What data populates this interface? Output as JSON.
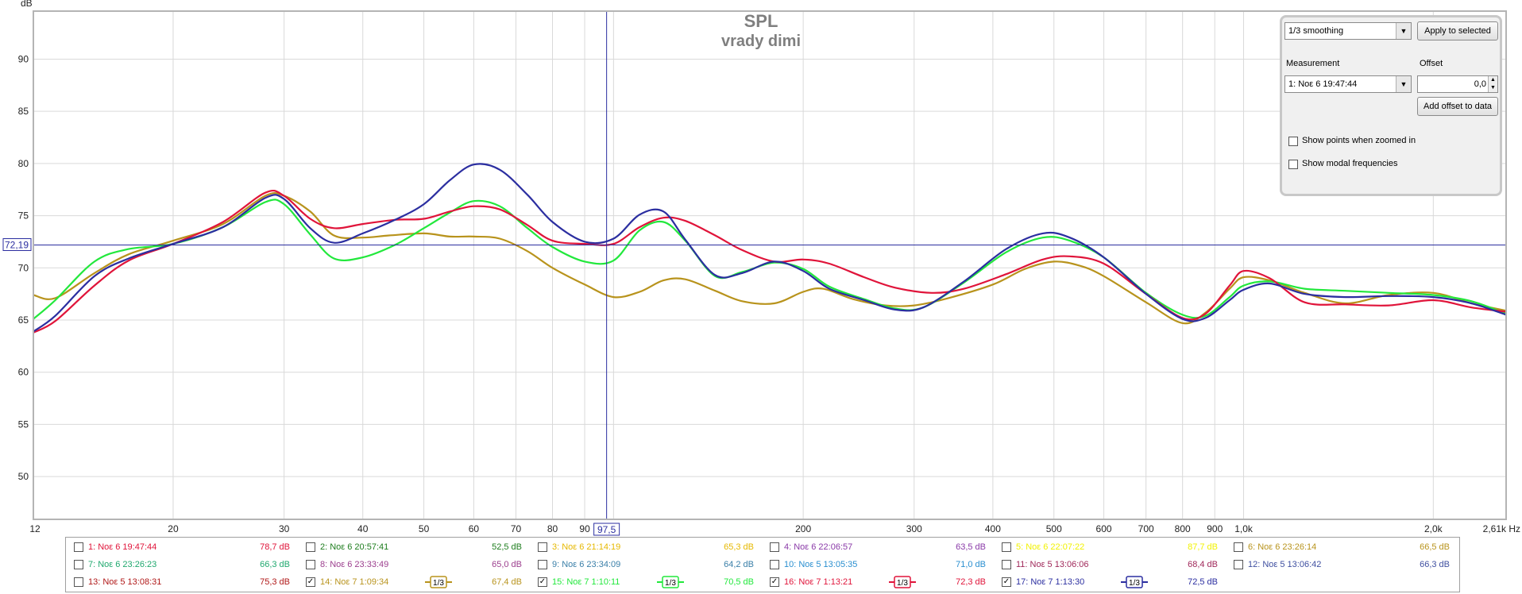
{
  "chart_data": {
    "type": "line",
    "title": "SPL",
    "subtitle": "vrady dimi",
    "ylabel": "dB",
    "x_unit": "Hz",
    "x_scale": "log",
    "xlim": [
      12,
      2610
    ],
    "ylim": [
      45.9,
      94.6
    ],
    "grid": true,
    "y_ticks": [
      50,
      55,
      60,
      65,
      70,
      75,
      80,
      85,
      90
    ],
    "y_tick_labels": [
      "50",
      "55",
      "60",
      "65",
      "70",
      "75",
      "80",
      "85",
      "90"
    ],
    "x_ticks": [
      {
        "v": 12,
        "label": "12"
      },
      {
        "v": 20,
        "label": "20"
      },
      {
        "v": 30,
        "label": "30"
      },
      {
        "v": 40,
        "label": "40"
      },
      {
        "v": 50,
        "label": "50"
      },
      {
        "v": 60,
        "label": "60"
      },
      {
        "v": 70,
        "label": "70"
      },
      {
        "v": 80,
        "label": "80"
      },
      {
        "v": 90,
        "label": "90"
      },
      {
        "v": 200,
        "label": "200"
      },
      {
        "v": 300,
        "label": "300"
      },
      {
        "v": 400,
        "label": "400"
      },
      {
        "v": 500,
        "label": "500"
      },
      {
        "v": 600,
        "label": "600"
      },
      {
        "v": 700,
        "label": "700"
      },
      {
        "v": 800,
        "label": "800"
      },
      {
        "v": 900,
        "label": "900"
      },
      {
        "v": 1000,
        "label": "1,0k"
      },
      {
        "v": 2000,
        "label": "2,0k"
      },
      {
        "v": 2610,
        "label": "2,61k Hz"
      }
    ],
    "cursor": {
      "x": 97.5,
      "x_label": "97,5",
      "y": 72.19,
      "y_label": "72,19"
    },
    "series": [
      {
        "name": "14: Noε 7 1:09:34",
        "color": "#b8931c",
        "points": [
          [
            12,
            67.4
          ],
          [
            13,
            67.1
          ],
          [
            15,
            69.5
          ],
          [
            17,
            71.3
          ],
          [
            20,
            72.6
          ],
          [
            24,
            74.2
          ],
          [
            28,
            76.9
          ],
          [
            30,
            76.9
          ],
          [
            33,
            75.4
          ],
          [
            36,
            73.1
          ],
          [
            40,
            72.9
          ],
          [
            44,
            73.1
          ],
          [
            50,
            73.3
          ],
          [
            55,
            73.0
          ],
          [
            60,
            73.0
          ],
          [
            66,
            72.8
          ],
          [
            73,
            71.6
          ],
          [
            80,
            70.0
          ],
          [
            90,
            68.4
          ],
          [
            100,
            67.2
          ],
          [
            110,
            67.7
          ],
          [
            120,
            68.8
          ],
          [
            130,
            68.9
          ],
          [
            145,
            67.8
          ],
          [
            160,
            66.8
          ],
          [
            180,
            66.6
          ],
          [
            200,
            67.7
          ],
          [
            215,
            68.0
          ],
          [
            240,
            67.0
          ],
          [
            270,
            66.4
          ],
          [
            300,
            66.4
          ],
          [
            340,
            67.1
          ],
          [
            400,
            68.4
          ],
          [
            450,
            69.9
          ],
          [
            500,
            70.6
          ],
          [
            550,
            70.2
          ],
          [
            600,
            69.2
          ],
          [
            700,
            66.7
          ],
          [
            800,
            64.7
          ],
          [
            870,
            65.7
          ],
          [
            950,
            68.0
          ],
          [
            1000,
            69.1
          ],
          [
            1100,
            68.8
          ],
          [
            1250,
            67.6
          ],
          [
            1450,
            66.6
          ],
          [
            1700,
            67.4
          ],
          [
            2000,
            67.6
          ],
          [
            2300,
            66.6
          ],
          [
            2610,
            65.9
          ]
        ]
      },
      {
        "name": "15: Noε 7 1:10:11",
        "color": "#22e83c",
        "points": [
          [
            12,
            65.1
          ],
          [
            13,
            66.9
          ],
          [
            15,
            70.6
          ],
          [
            17,
            71.8
          ],
          [
            20,
            72.3
          ],
          [
            24,
            73.9
          ],
          [
            28,
            76.3
          ],
          [
            30,
            76.1
          ],
          [
            33,
            73.2
          ],
          [
            36,
            70.9
          ],
          [
            40,
            71.0
          ],
          [
            45,
            72.2
          ],
          [
            50,
            73.8
          ],
          [
            55,
            75.3
          ],
          [
            60,
            76.4
          ],
          [
            66,
            75.9
          ],
          [
            73,
            73.8
          ],
          [
            80,
            72.0
          ],
          [
            90,
            70.6
          ],
          [
            100,
            70.7
          ],
          [
            110,
            73.6
          ],
          [
            120,
            74.4
          ],
          [
            130,
            72.6
          ],
          [
            145,
            69.2
          ],
          [
            160,
            69.6
          ],
          [
            180,
            70.5
          ],
          [
            200,
            69.9
          ],
          [
            220,
            68.2
          ],
          [
            250,
            67.0
          ],
          [
            280,
            66.1
          ],
          [
            310,
            66.2
          ],
          [
            360,
            68.6
          ],
          [
            420,
            71.5
          ],
          [
            480,
            72.9
          ],
          [
            530,
            72.6
          ],
          [
            600,
            71.0
          ],
          [
            700,
            67.6
          ],
          [
            800,
            65.5
          ],
          [
            870,
            65.4
          ],
          [
            950,
            67.2
          ],
          [
            1000,
            68.3
          ],
          [
            1100,
            68.7
          ],
          [
            1250,
            68.0
          ],
          [
            1450,
            67.8
          ],
          [
            1700,
            67.6
          ],
          [
            2000,
            67.4
          ],
          [
            2300,
            66.8
          ],
          [
            2610,
            65.6
          ]
        ]
      },
      {
        "name": "16: Noε 7 1:13:21",
        "color": "#e0143a",
        "points": [
          [
            12,
            63.8
          ],
          [
            13,
            64.9
          ],
          [
            15,
            68.3
          ],
          [
            17,
            70.7
          ],
          [
            20,
            72.3
          ],
          [
            24,
            74.4
          ],
          [
            28,
            77.2
          ],
          [
            30,
            76.9
          ],
          [
            33,
            74.7
          ],
          [
            36,
            73.8
          ],
          [
            40,
            74.2
          ],
          [
            45,
            74.6
          ],
          [
            50,
            74.7
          ],
          [
            55,
            75.4
          ],
          [
            60,
            75.9
          ],
          [
            66,
            75.6
          ],
          [
            73,
            74.1
          ],
          [
            80,
            72.6
          ],
          [
            90,
            72.3
          ],
          [
            100,
            72.3
          ],
          [
            110,
            73.9
          ],
          [
            120,
            74.8
          ],
          [
            130,
            74.5
          ],
          [
            145,
            73.1
          ],
          [
            160,
            71.7
          ],
          [
            180,
            70.6
          ],
          [
            200,
            70.8
          ],
          [
            220,
            70.4
          ],
          [
            250,
            69.1
          ],
          [
            280,
            68.1
          ],
          [
            320,
            67.6
          ],
          [
            360,
            68.0
          ],
          [
            420,
            69.4
          ],
          [
            480,
            70.8
          ],
          [
            530,
            71.1
          ],
          [
            600,
            70.4
          ],
          [
            700,
            67.5
          ],
          [
            800,
            65.2
          ],
          [
            870,
            65.6
          ],
          [
            950,
            68.3
          ],
          [
            1000,
            69.7
          ],
          [
            1100,
            69.0
          ],
          [
            1250,
            66.7
          ],
          [
            1450,
            66.5
          ],
          [
            1700,
            66.4
          ],
          [
            2000,
            66.9
          ],
          [
            2300,
            66.2
          ],
          [
            2610,
            65.8
          ]
        ]
      },
      {
        "name": "17: Noε 7 1:13:30",
        "color": "#2b2ea0",
        "points": [
          [
            12,
            63.9
          ],
          [
            13,
            65.4
          ],
          [
            15,
            69.2
          ],
          [
            17,
            70.9
          ],
          [
            20,
            72.3
          ],
          [
            24,
            73.9
          ],
          [
            28,
            76.7
          ],
          [
            30,
            76.6
          ],
          [
            33,
            73.8
          ],
          [
            36,
            72.4
          ],
          [
            40,
            73.3
          ],
          [
            45,
            74.6
          ],
          [
            50,
            76.1
          ],
          [
            55,
            78.4
          ],
          [
            60,
            79.9
          ],
          [
            66,
            79.4
          ],
          [
            73,
            77.0
          ],
          [
            80,
            74.4
          ],
          [
            90,
            72.5
          ],
          [
            100,
            72.8
          ],
          [
            110,
            75.1
          ],
          [
            120,
            75.4
          ],
          [
            130,
            72.7
          ],
          [
            145,
            69.3
          ],
          [
            160,
            69.5
          ],
          [
            180,
            70.6
          ],
          [
            200,
            69.7
          ],
          [
            220,
            68.0
          ],
          [
            250,
            66.9
          ],
          [
            280,
            66.0
          ],
          [
            310,
            66.2
          ],
          [
            360,
            68.7
          ],
          [
            420,
            71.8
          ],
          [
            480,
            73.3
          ],
          [
            530,
            72.9
          ],
          [
            600,
            71.0
          ],
          [
            700,
            67.5
          ],
          [
            800,
            65.1
          ],
          [
            870,
            65.2
          ],
          [
            950,
            66.9
          ],
          [
            1000,
            67.9
          ],
          [
            1100,
            68.5
          ],
          [
            1250,
            67.5
          ],
          [
            1450,
            67.2
          ],
          [
            1700,
            67.3
          ],
          [
            2000,
            67.2
          ],
          [
            2300,
            66.6
          ],
          [
            2610,
            65.5
          ]
        ]
      }
    ]
  },
  "panel": {
    "smoothing": "1/3 smoothing",
    "apply_label": "Apply to selected",
    "measurement_label": "Measurement",
    "offset_label": "Offset",
    "measurement_value": "1: Noε 6 19:47:44",
    "offset_value": "0,0",
    "add_offset_label": "Add offset to data",
    "show_points_label": "Show points when zoomed in",
    "show_modal_label": "Show modal frequencies"
  },
  "legend": {
    "smoothing_tag": "1/3",
    "rows": [
      [
        {
          "name": "1: Noε 6 19:47:44",
          "value": "78,7 dB",
          "color": "#e0143a",
          "checked": false
        },
        {
          "name": "2: Noε 6 20:57:41",
          "value": "52,5 dB",
          "color": "#1e7d1e",
          "checked": false
        },
        {
          "name": "3: Noε 6 21:14:19",
          "value": "65,3 dB",
          "color": "#e6b800",
          "checked": false
        },
        {
          "name": "4: Noε 6 22:06:57",
          "value": "63,5 dB",
          "color": "#8a3aa8",
          "checked": false
        },
        {
          "name": "5: Noε 6 22:07:22",
          "value": "87,7 dB",
          "color": "#f2f200",
          "checked": false
        },
        {
          "name": "6: Noε 6 23:26:14",
          "value": "66,5 dB",
          "color": "#b8931c",
          "checked": false
        }
      ],
      [
        {
          "name": "7: Noε 6 23:26:23",
          "value": "66,3 dB",
          "color": "#1fa86e",
          "checked": false
        },
        {
          "name": "8: Noε 6 23:33:49",
          "value": "65,0 dB",
          "color": "#9c3f8e",
          "checked": false
        },
        {
          "name": "9: Noε 6 23:34:09",
          "value": "64,2 dB",
          "color": "#3a7fa8",
          "checked": false
        },
        {
          "name": "10: Noε 5 13:05:35",
          "value": "71,0 dB",
          "color": "#2a8fd0",
          "checked": false
        },
        {
          "name": "11: Noε 5 13:06:06",
          "value": "68,4 dB",
          "color": "#a0285a",
          "checked": false
        },
        {
          "name": "12: Noε 5 13:06:42",
          "value": "66,3 dB",
          "color": "#3f4fa0",
          "checked": false
        }
      ],
      [
        {
          "name": "13: Noε 5 13:08:31",
          "value": "75,3 dB",
          "color": "#b01818",
          "checked": false,
          "smooth": false
        },
        {
          "name": "14: Noε 7 1:09:34",
          "value": "67,4 dB",
          "color": "#b8931c",
          "checked": true,
          "smooth": true
        },
        {
          "name": "15: Noε 7 1:10:11",
          "value": "70,5 dB",
          "color": "#22e83c",
          "checked": true,
          "smooth": true
        },
        {
          "name": "16: Noε 7 1:13:21",
          "value": "72,3 dB",
          "color": "#e0143a",
          "checked": true,
          "smooth": true
        },
        {
          "name": "17: Noε 7 1:13:30",
          "value": "72,5 dB",
          "color": "#2b2ea0",
          "checked": true,
          "smooth": true
        }
      ]
    ]
  }
}
